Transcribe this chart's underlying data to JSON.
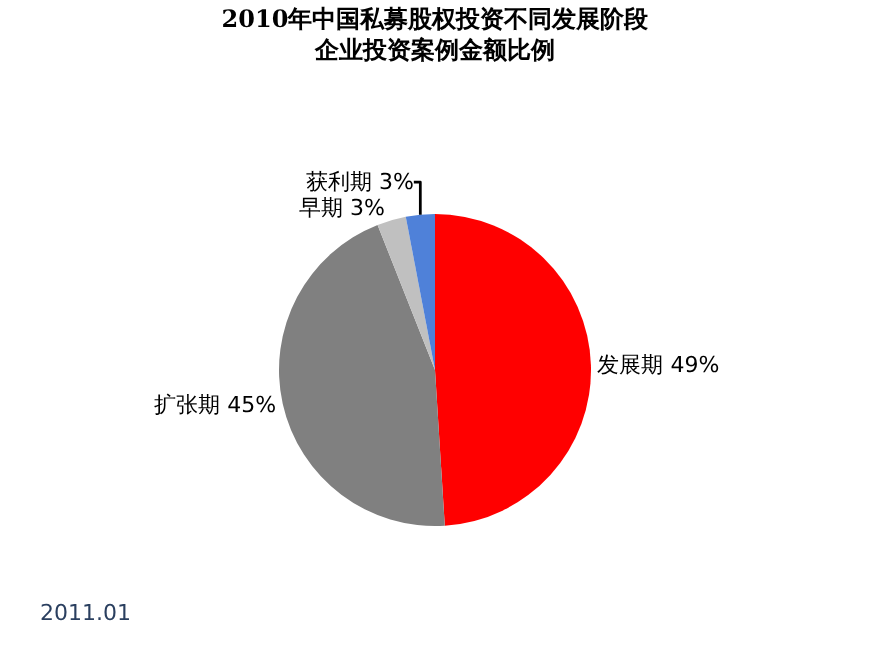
{
  "chart_data": {
    "type": "pie",
    "title": "2010年中国私募股权投资不同发展阶段企业投资案例金额比例",
    "categories": [
      "发展期",
      "扩张期",
      "早期",
      "获利期"
    ],
    "values": [
      49,
      45,
      3,
      3
    ],
    "colors": [
      "#ff0000",
      "#808080",
      "#c0c0c0",
      "#4f81d9"
    ],
    "value_labels": [
      "49%",
      "45%",
      "3%",
      "3%"
    ],
    "annotations": [
      "2011.01"
    ],
    "legend": false
  }
}
